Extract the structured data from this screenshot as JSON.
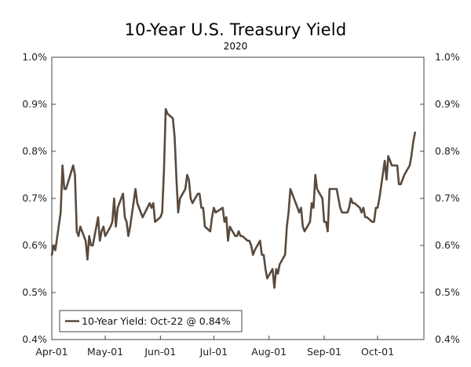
{
  "chart_data": {
    "type": "line",
    "title": "10-Year U.S. Treasury Yield",
    "subtitle": "2020",
    "xlabel": "",
    "ylabel": "",
    "ylim": [
      0.4,
      1.0
    ],
    "yticks": [
      0.4,
      0.5,
      0.6,
      0.7,
      0.8,
      0.9,
      1.0
    ],
    "ytick_labels": [
      "0.4%",
      "0.5%",
      "0.6%",
      "0.7%",
      "0.8%",
      "0.9%",
      "1.0%"
    ],
    "xticks": [
      "Apr-01",
      "May-01",
      "Jun-01",
      "Jul-01",
      "Aug-01",
      "Sep-01",
      "Oct-01"
    ],
    "grid": false,
    "legend_position": "bottom-left",
    "line_color": "#594a3e",
    "series": [
      {
        "name": "10-Year Yield: Oct-22 @ 0.84%",
        "points": [
          [
            "Apr-01",
            0.58
          ],
          [
            "Apr-02",
            0.6
          ],
          [
            "Apr-03",
            0.59
          ],
          [
            "Apr-06",
            0.67
          ],
          [
            "Apr-07",
            0.77
          ],
          [
            "Apr-08",
            0.72
          ],
          [
            "Apr-09",
            0.72
          ],
          [
            "Apr-13",
            0.77
          ],
          [
            "Apr-14",
            0.75
          ],
          [
            "Apr-15",
            0.63
          ],
          [
            "Apr-16",
            0.62
          ],
          [
            "Apr-17",
            0.64
          ],
          [
            "Apr-20",
            0.61
          ],
          [
            "Apr-21",
            0.57
          ],
          [
            "Apr-22",
            0.62
          ],
          [
            "Apr-23",
            0.6
          ],
          [
            "Apr-24",
            0.6
          ],
          [
            "Apr-27",
            0.66
          ],
          [
            "Apr-28",
            0.61
          ],
          [
            "Apr-29",
            0.63
          ],
          [
            "Apr-30",
            0.64
          ],
          [
            "May-01",
            0.62
          ],
          [
            "May-04",
            0.64
          ],
          [
            "May-05",
            0.65
          ],
          [
            "May-06",
            0.7
          ],
          [
            "May-07",
            0.64
          ],
          [
            "May-08",
            0.68
          ],
          [
            "May-11",
            0.71
          ],
          [
            "May-12",
            0.66
          ],
          [
            "May-13",
            0.65
          ],
          [
            "May-14",
            0.62
          ],
          [
            "May-15",
            0.64
          ],
          [
            "May-18",
            0.72
          ],
          [
            "May-19",
            0.69
          ],
          [
            "May-20",
            0.68
          ],
          [
            "May-21",
            0.67
          ],
          [
            "May-22",
            0.66
          ],
          [
            "May-26",
            0.69
          ],
          [
            "May-27",
            0.68
          ],
          [
            "May-28",
            0.69
          ],
          [
            "May-29",
            0.65
          ],
          [
            "Jun-01",
            0.66
          ],
          [
            "Jun-02",
            0.67
          ],
          [
            "Jun-03",
            0.76
          ],
          [
            "Jun-04",
            0.89
          ],
          [
            "Jun-05",
            0.88
          ],
          [
            "Jun-08",
            0.87
          ],
          [
            "Jun-09",
            0.83
          ],
          [
            "Jun-10",
            0.74
          ],
          [
            "Jun-11",
            0.67
          ],
          [
            "Jun-12",
            0.7
          ],
          [
            "Jun-15",
            0.72
          ],
          [
            "Jun-16",
            0.75
          ],
          [
            "Jun-17",
            0.74
          ],
          [
            "Jun-18",
            0.7
          ],
          [
            "Jun-19",
            0.69
          ],
          [
            "Jun-22",
            0.71
          ],
          [
            "Jun-23",
            0.71
          ],
          [
            "Jun-24",
            0.68
          ],
          [
            "Jun-25",
            0.68
          ],
          [
            "Jun-26",
            0.64
          ],
          [
            "Jun-29",
            0.63
          ],
          [
            "Jun-30",
            0.66
          ],
          [
            "Jul-01",
            0.68
          ],
          [
            "Jul-02",
            0.67
          ],
          [
            "Jul-06",
            0.68
          ],
          [
            "Jul-07",
            0.65
          ],
          [
            "Jul-08",
            0.66
          ],
          [
            "Jul-09",
            0.61
          ],
          [
            "Jul-10",
            0.64
          ],
          [
            "Jul-13",
            0.62
          ],
          [
            "Jul-14",
            0.62
          ],
          [
            "Jul-15",
            0.63
          ],
          [
            "Jul-16",
            0.62
          ],
          [
            "Jul-17",
            0.62
          ],
          [
            "Jul-20",
            0.61
          ],
          [
            "Jul-21",
            0.61
          ],
          [
            "Jul-22",
            0.6
          ],
          [
            "Jul-23",
            0.58
          ],
          [
            "Jul-24",
            0.59
          ],
          [
            "Jul-27",
            0.61
          ],
          [
            "Jul-28",
            0.58
          ],
          [
            "Jul-29",
            0.58
          ],
          [
            "Jul-30",
            0.55
          ],
          [
            "Jul-31",
            0.53
          ],
          [
            "Aug-03",
            0.55
          ],
          [
            "Aug-04",
            0.51
          ],
          [
            "Aug-05",
            0.55
          ],
          [
            "Aug-06",
            0.54
          ],
          [
            "Aug-07",
            0.56
          ],
          [
            "Aug-10",
            0.58
          ],
          [
            "Aug-11",
            0.64
          ],
          [
            "Aug-12",
            0.67
          ],
          [
            "Aug-13",
            0.72
          ],
          [
            "Aug-14",
            0.71
          ],
          [
            "Aug-17",
            0.68
          ],
          [
            "Aug-18",
            0.67
          ],
          [
            "Aug-19",
            0.68
          ],
          [
            "Aug-20",
            0.64
          ],
          [
            "Aug-21",
            0.63
          ],
          [
            "Aug-24",
            0.65
          ],
          [
            "Aug-25",
            0.69
          ],
          [
            "Aug-26",
            0.68
          ],
          [
            "Aug-27",
            0.75
          ],
          [
            "Aug-28",
            0.72
          ],
          [
            "Aug-31",
            0.7
          ],
          [
            "Sep-01",
            0.65
          ],
          [
            "Sep-02",
            0.65
          ],
          [
            "Sep-03",
            0.63
          ],
          [
            "Sep-04",
            0.72
          ],
          [
            "Sep-08",
            0.72
          ],
          [
            "Sep-09",
            0.7
          ],
          [
            "Sep-10",
            0.68
          ],
          [
            "Sep-11",
            0.67
          ],
          [
            "Sep-14",
            0.67
          ],
          [
            "Sep-15",
            0.68
          ],
          [
            "Sep-16",
            0.7
          ],
          [
            "Sep-17",
            0.69
          ],
          [
            "Sep-18",
            0.69
          ],
          [
            "Sep-21",
            0.68
          ],
          [
            "Sep-22",
            0.67
          ],
          [
            "Sep-23",
            0.68
          ],
          [
            "Sep-24",
            0.66
          ],
          [
            "Sep-25",
            0.66
          ],
          [
            "Sep-28",
            0.65
          ],
          [
            "Sep-29",
            0.65
          ],
          [
            "Sep-30",
            0.68
          ],
          [
            "Oct-01",
            0.68
          ],
          [
            "Oct-02",
            0.7
          ],
          [
            "Oct-05",
            0.78
          ],
          [
            "Oct-06",
            0.74
          ],
          [
            "Oct-07",
            0.79
          ],
          [
            "Oct-08",
            0.78
          ],
          [
            "Oct-09",
            0.77
          ],
          [
            "Oct-12",
            0.77
          ],
          [
            "Oct-13",
            0.73
          ],
          [
            "Oct-14",
            0.73
          ],
          [
            "Oct-15",
            0.74
          ],
          [
            "Oct-16",
            0.75
          ],
          [
            "Oct-19",
            0.77
          ],
          [
            "Oct-20",
            0.79
          ],
          [
            "Oct-21",
            0.82
          ],
          [
            "Oct-22",
            0.84
          ]
        ]
      }
    ]
  }
}
